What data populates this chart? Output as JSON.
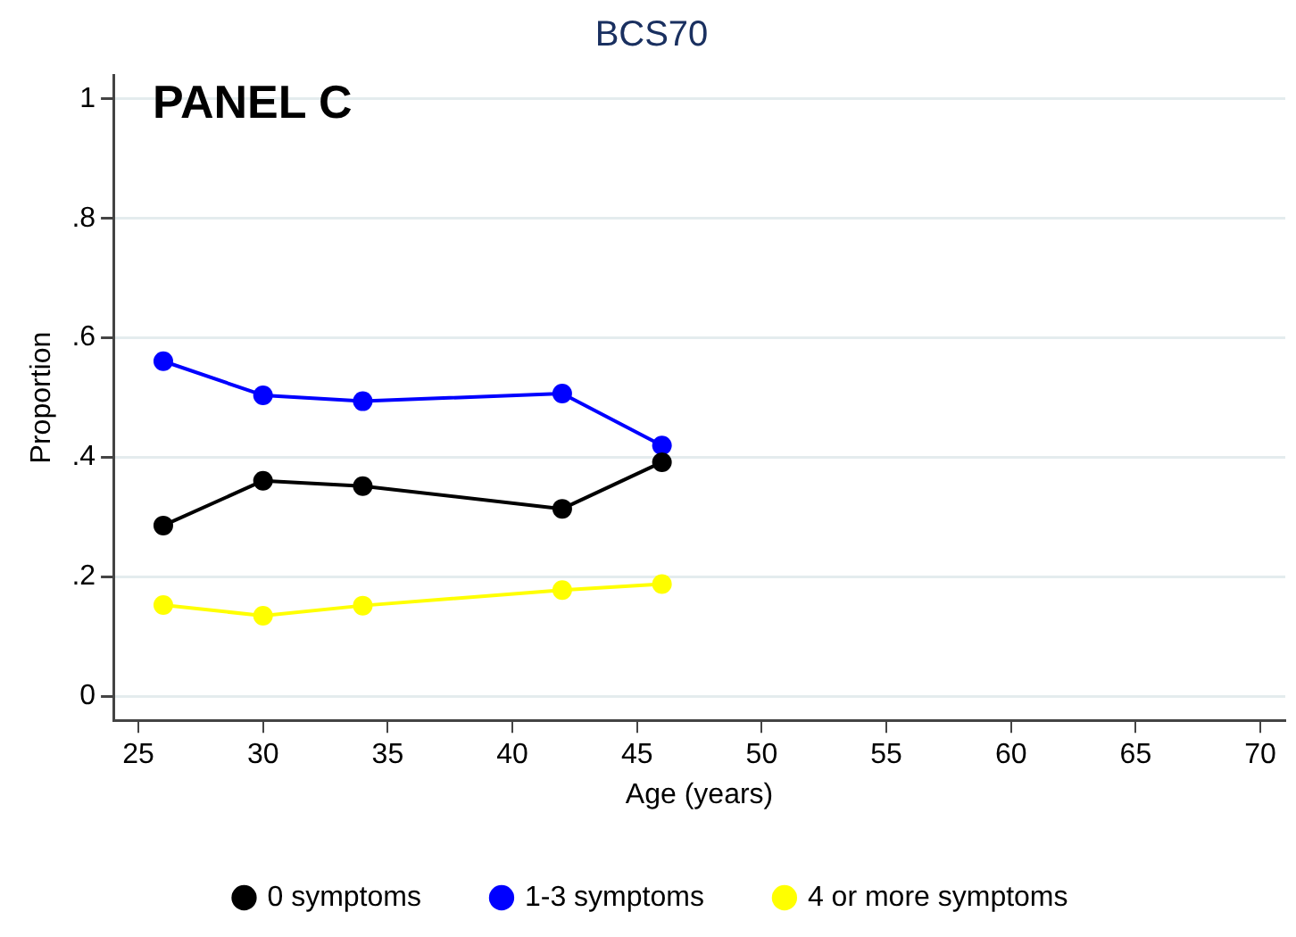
{
  "chart_data": {
    "type": "line",
    "title": "BCS70",
    "xlabel": "Age (years)",
    "ylabel": "Proportion",
    "annotations": [
      "PANEL C"
    ],
    "x": [
      26,
      30,
      34,
      42,
      46
    ],
    "series": [
      {
        "name": "0 symptoms",
        "color": "#000000",
        "values": [
          0.286,
          0.361,
          0.352,
          0.314,
          0.392
        ]
      },
      {
        "name": "1-3 symptoms",
        "color": "#0000ff",
        "values": [
          0.561,
          0.504,
          0.494,
          0.507,
          0.42
        ]
      },
      {
        "name": "4 or more symptoms",
        "color": "#ffff00",
        "values": [
          0.153,
          0.135,
          0.152,
          0.178,
          0.188
        ]
      }
    ],
    "xlim": [
      24,
      71
    ],
    "xticks": [
      25,
      30,
      35,
      40,
      45,
      50,
      55,
      60,
      65,
      70
    ],
    "ylim": [
      -0.04,
      1.04
    ],
    "yticks": [
      {
        "value": 0,
        "label": "0"
      },
      {
        "value": 0.2,
        "label": ".2"
      },
      {
        "value": 0.4,
        "label": ".4"
      },
      {
        "value": 0.6,
        "label": ".6"
      },
      {
        "value": 0.8,
        "label": ".8"
      },
      {
        "value": 1,
        "label": "1"
      }
    ],
    "grid": "y",
    "legend": "bottom",
    "marker": "circle",
    "line_style": "solid"
  }
}
